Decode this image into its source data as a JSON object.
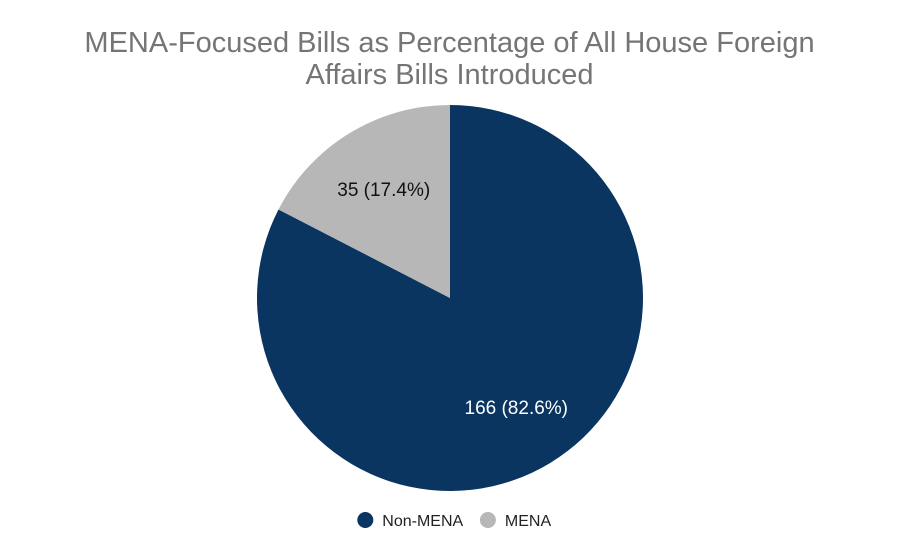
{
  "chart_data": {
    "type": "pie",
    "title_lines": [
      "MENA-Focused Bills as Percentage of All House Foreign",
      "Affairs Bills Introduced"
    ],
    "slices": [
      {
        "name": "Non-MENA",
        "value": 166,
        "percent": 82.6,
        "label": "166 (82.6%)",
        "color": "#0a3561",
        "label_color": "#ffffff"
      },
      {
        "name": "MENA",
        "value": 35,
        "percent": 17.4,
        "label": "35 (17.4%)",
        "color": "#b7b7b7",
        "label_color": "#111111"
      }
    ],
    "legend_position": "bottom"
  }
}
